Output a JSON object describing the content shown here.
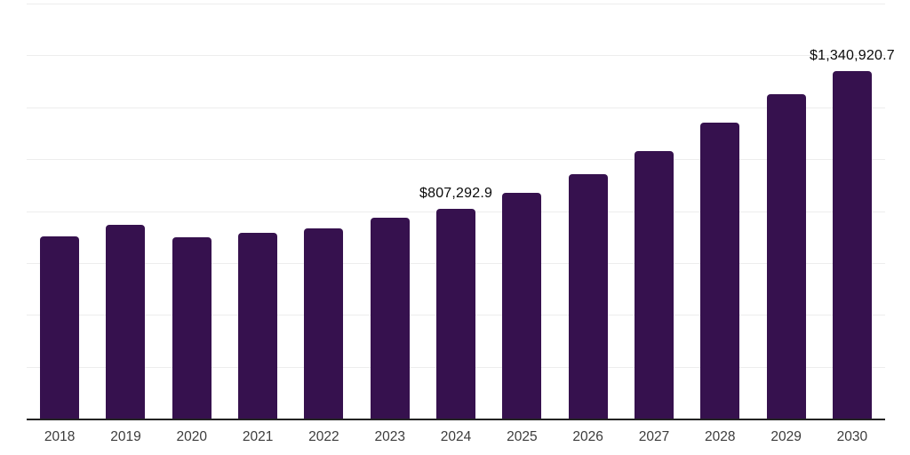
{
  "chart": {
    "background_color": "#ffffff",
    "bar_color": "#36114e",
    "axis_line_color": "#232323",
    "gridline_color": "#ededed",
    "data_label_color": "#0a0a0a",
    "tick_label_color": "#3c3c3c"
  },
  "chart_data": {
    "type": "bar",
    "categories": [
      "2018",
      "2019",
      "2020",
      "2021",
      "2022",
      "2023",
      "2024",
      "2025",
      "2026",
      "2027",
      "2028",
      "2029",
      "2030"
    ],
    "values": [
      703000,
      748000,
      699000,
      715000,
      734000,
      773000,
      807292.9,
      871000,
      942000,
      1030000,
      1140000,
      1250000,
      1340920.7
    ],
    "data_labels": {
      "2024": "$807,292.9",
      "2030": "$1,340,920.7"
    },
    "ylim": [
      0,
      1600000
    ],
    "gridline_step": 200000,
    "grid": "horizontal",
    "legend_position": "none",
    "bar_corner_radius_px": 4
  }
}
